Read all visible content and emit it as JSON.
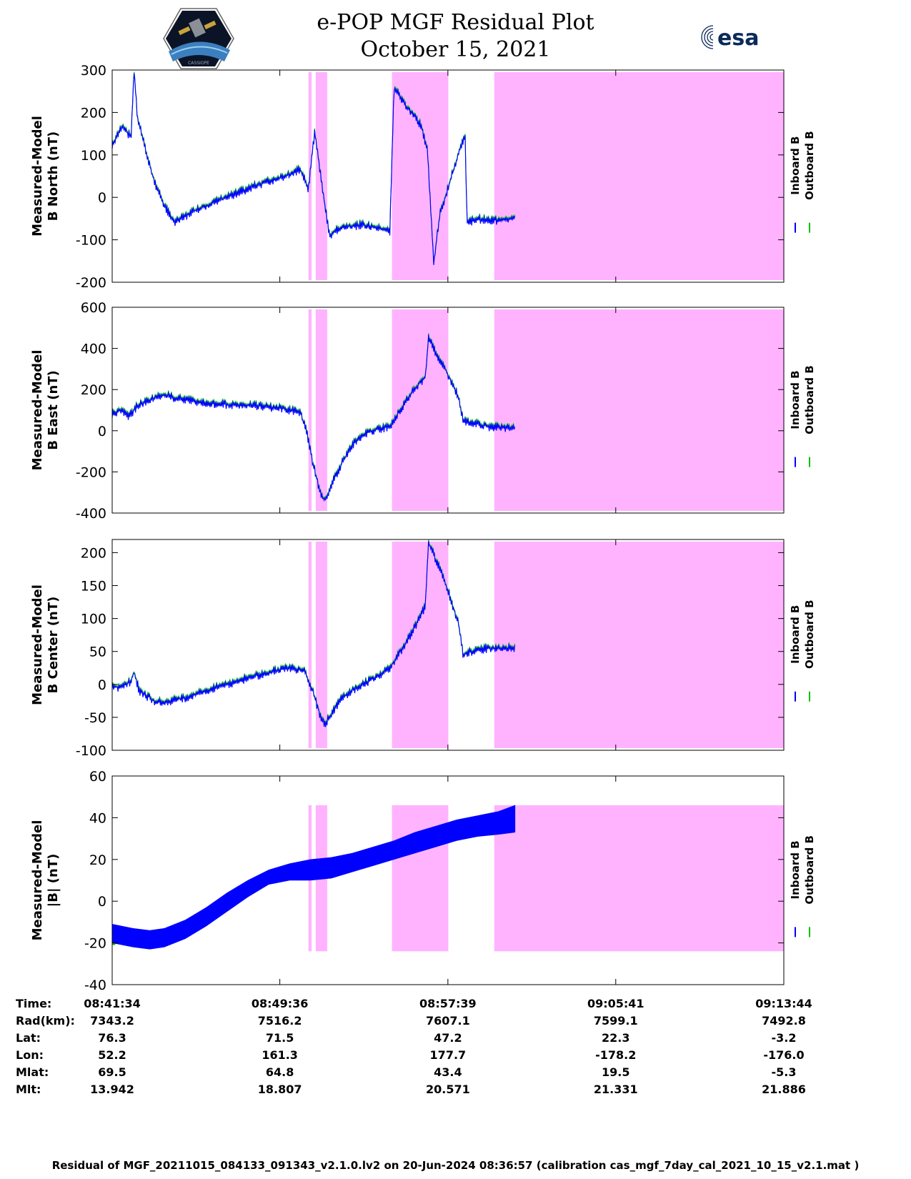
{
  "header": {
    "title": "e-POP MGF Residual Plot",
    "date": "October 15, 2021",
    "esa_label": "esa"
  },
  "colors": {
    "inboard": "#0000ff",
    "outboard": "#00c000",
    "shade": "#ffb3ff"
  },
  "chart_data": [
    {
      "type": "line",
      "ylabel_line1": "Measured-Model",
      "ylabel_line2": "B North (nT)",
      "ylim": [
        -200,
        300
      ],
      "yticks": [
        "300",
        "200",
        "100",
        "0",
        "-100",
        "-200"
      ],
      "ytick_values": [
        300,
        200,
        100,
        0,
        -100,
        -200
      ],
      "legend": [
        "Inboard B",
        "Outboard B"
      ],
      "series_points": [
        [
          0,
          120
        ],
        [
          0.5,
          170
        ],
        [
          0.9,
          140
        ],
        [
          1.05,
          300
        ],
        [
          1.2,
          190
        ],
        [
          1.6,
          110
        ],
        [
          2.0,
          40
        ],
        [
          2.5,
          -20
        ],
        [
          3.0,
          -60
        ],
        [
          3.5,
          -45
        ],
        [
          4.0,
          -30
        ],
        [
          5.0,
          -10
        ],
        [
          6.0,
          10
        ],
        [
          7.0,
          30
        ],
        [
          8.0,
          45
        ],
        [
          9.0,
          65
        ],
        [
          9.4,
          20
        ],
        [
          9.7,
          155
        ],
        [
          10.1,
          10
        ],
        [
          10.4,
          -90
        ],
        [
          11.0,
          -70
        ],
        [
          12.0,
          -65
        ],
        [
          13.3,
          -80
        ],
        [
          13.5,
          260
        ],
        [
          14.0,
          220
        ],
        [
          14.8,
          170
        ],
        [
          15.1,
          110
        ],
        [
          15.4,
          -155
        ],
        [
          15.7,
          -40
        ],
        [
          16.2,
          40
        ],
        [
          16.9,
          150
        ],
        [
          17.0,
          -60
        ],
        [
          17.5,
          -50
        ],
        [
          18.0,
          -55
        ],
        [
          19.3,
          -50
        ]
      ]
    },
    {
      "type": "line",
      "ylabel_line1": "Measured-Model",
      "ylabel_line2": "B East (nT)",
      "ylim": [
        -400,
        600
      ],
      "yticks": [
        "600",
        "400",
        "200",
        "0",
        "-200",
        "-400"
      ],
      "ytick_values": [
        600,
        400,
        200,
        0,
        -200,
        -400
      ],
      "legend": [
        "Inboard B",
        "Outboard B"
      ],
      "series_points": [
        [
          0,
          80
        ],
        [
          0.4,
          100
        ],
        [
          0.8,
          70
        ],
        [
          1.2,
          120
        ],
        [
          1.8,
          150
        ],
        [
          2.5,
          175
        ],
        [
          3.0,
          160
        ],
        [
          4.0,
          140
        ],
        [
          5.0,
          130
        ],
        [
          6.0,
          125
        ],
        [
          7.0,
          120
        ],
        [
          8.0,
          110
        ],
        [
          9.0,
          90
        ],
        [
          9.3,
          0
        ],
        [
          9.6,
          -150
        ],
        [
          10.0,
          -320
        ],
        [
          10.2,
          -340
        ],
        [
          10.5,
          -260
        ],
        [
          11.0,
          -160
        ],
        [
          11.5,
          -70
        ],
        [
          12.0,
          -20
        ],
        [
          12.6,
          5
        ],
        [
          13.3,
          20
        ],
        [
          13.8,
          100
        ],
        [
          14.3,
          180
        ],
        [
          14.8,
          240
        ],
        [
          15.0,
          260
        ],
        [
          15.15,
          450
        ],
        [
          15.5,
          380
        ],
        [
          16.0,
          290
        ],
        [
          16.6,
          160
        ],
        [
          16.8,
          50
        ],
        [
          17.2,
          40
        ],
        [
          18.0,
          20
        ],
        [
          19.3,
          10
        ]
      ]
    },
    {
      "type": "line",
      "ylabel_line1": "Measured-Model",
      "ylabel_line2": "B Center (nT)",
      "ylim": [
        -100,
        220
      ],
      "yticks": [
        "200",
        "150",
        "100",
        "50",
        "0",
        "-50",
        "-100"
      ],
      "ytick_values": [
        200,
        150,
        100,
        50,
        0,
        -50,
        -100
      ],
      "legend": [
        "Inboard B",
        "Outboard B"
      ],
      "series_points": [
        [
          0,
          -5
        ],
        [
          0.5,
          -3
        ],
        [
          0.9,
          5
        ],
        [
          1.05,
          18
        ],
        [
          1.3,
          -10
        ],
        [
          2.0,
          -25
        ],
        [
          2.5,
          -28
        ],
        [
          3.5,
          -20
        ],
        [
          4.5,
          -10
        ],
        [
          5.5,
          0
        ],
        [
          6.5,
          10
        ],
        [
          7.5,
          18
        ],
        [
          8.5,
          25
        ],
        [
          9.2,
          22
        ],
        [
          9.6,
          -10
        ],
        [
          10.0,
          -50
        ],
        [
          10.2,
          -60
        ],
        [
          10.5,
          -45
        ],
        [
          11.0,
          -20
        ],
        [
          12.0,
          0
        ],
        [
          12.6,
          10
        ],
        [
          13.3,
          25
        ],
        [
          13.8,
          50
        ],
        [
          14.3,
          75
        ],
        [
          14.8,
          105
        ],
        [
          15.0,
          120
        ],
        [
          15.15,
          215
        ],
        [
          15.5,
          190
        ],
        [
          16.0,
          150
        ],
        [
          16.6,
          90
        ],
        [
          16.8,
          45
        ],
        [
          17.2,
          50
        ],
        [
          18.0,
          55
        ],
        [
          19.3,
          55
        ]
      ]
    },
    {
      "type": "line",
      "ylabel_line1": "Measured-Model",
      "ylabel_line2": "|B| (nT)",
      "ylim": [
        -40,
        60
      ],
      "yticks": [
        "60",
        "40",
        "20",
        "0",
        "-20",
        "-40"
      ],
      "ytick_values": [
        60,
        40,
        20,
        0,
        -20,
        -40
      ],
      "legend": [
        "Inboard B",
        "Outboard B"
      ],
      "band_lower": [
        [
          0,
          -20
        ],
        [
          1.0,
          -22
        ],
        [
          1.8,
          -23
        ],
        [
          2.5,
          -22
        ],
        [
          3.5,
          -18
        ],
        [
          4.5,
          -12
        ],
        [
          5.5,
          -5
        ],
        [
          6.5,
          2
        ],
        [
          7.5,
          8
        ],
        [
          8.5,
          10
        ],
        [
          9.5,
          10
        ],
        [
          10.5,
          11
        ],
        [
          11.5,
          14
        ],
        [
          12.5,
          17
        ],
        [
          13.5,
          20
        ],
        [
          14.5,
          23
        ],
        [
          15.5,
          26
        ],
        [
          16.5,
          29
        ],
        [
          17.5,
          31
        ],
        [
          18.5,
          32
        ],
        [
          19.3,
          33
        ]
      ],
      "band_upper": [
        [
          0,
          -11
        ],
        [
          1.0,
          -13
        ],
        [
          1.8,
          -14
        ],
        [
          2.5,
          -13
        ],
        [
          3.5,
          -9
        ],
        [
          4.5,
          -3
        ],
        [
          5.5,
          4
        ],
        [
          6.5,
          10
        ],
        [
          7.5,
          15
        ],
        [
          8.5,
          18
        ],
        [
          9.5,
          20
        ],
        [
          10.5,
          21
        ],
        [
          11.5,
          23
        ],
        [
          12.5,
          26
        ],
        [
          13.5,
          29
        ],
        [
          14.5,
          33
        ],
        [
          15.5,
          36
        ],
        [
          16.5,
          39
        ],
        [
          17.5,
          41
        ],
        [
          18.5,
          43
        ],
        [
          19.3,
          46
        ]
      ]
    }
  ],
  "x_axis": {
    "x_min_minutes": 0,
    "x_max_minutes": 32.17,
    "tick_minutes": [
      0,
      8.03,
      16.08,
      24.12,
      32.17
    ],
    "shaded_intervals_minutes": [
      [
        9.4,
        9.55
      ],
      [
        9.75,
        10.3
      ],
      [
        13.4,
        16.1
      ],
      [
        18.3,
        32.17
      ]
    ]
  },
  "table": {
    "labels": [
      "Time:",
      "Rad(km):",
      "Lat:",
      "Lon:",
      "Mlat:",
      "Mlt:"
    ],
    "columns": [
      [
        "08:41:34",
        "7343.2",
        "76.3",
        "52.2",
        "69.5",
        "13.942"
      ],
      [
        "08:49:36",
        "7516.2",
        "71.5",
        "161.3",
        "64.8",
        "18.807"
      ],
      [
        "08:57:39",
        "7607.1",
        "47.2",
        "177.7",
        "43.4",
        "20.571"
      ],
      [
        "09:05:41",
        "7599.1",
        "22.3",
        "-178.2",
        "19.5",
        "21.331"
      ],
      [
        "09:13:44",
        "7492.8",
        "-3.2",
        "-176.0",
        "-5.3",
        "21.886"
      ]
    ]
  },
  "footer": {
    "text": "Residual of MGF_20211015_084133_091343_v2.1.0.lv2 on 20-Jun-2024 08:36:57 (calibration cas_mgf_7day_cal_2021_10_15_v2.1.mat )"
  }
}
